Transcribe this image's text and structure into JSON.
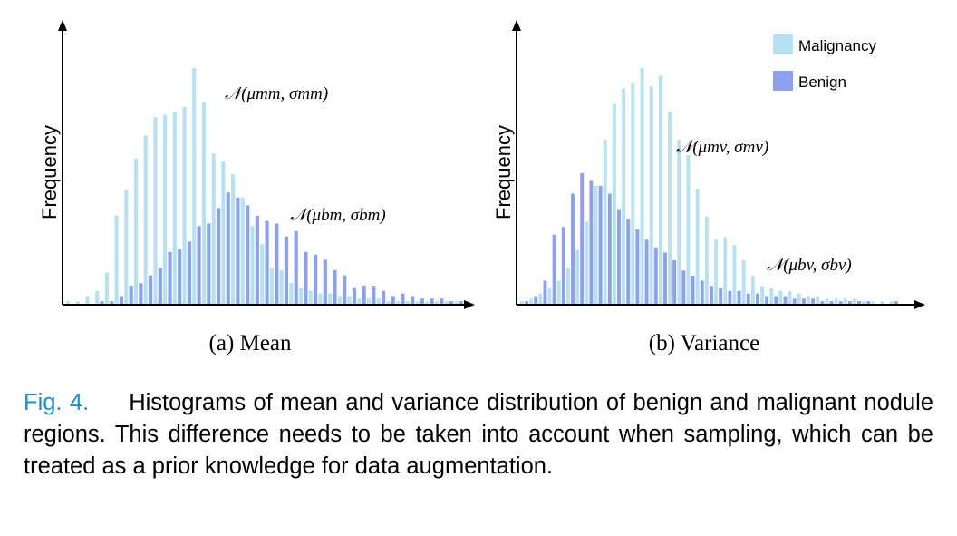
{
  "colors": {
    "malignancy": "#b4e2f3",
    "benign": "#8c9ff0",
    "caption_label": "#1b8ed3"
  },
  "chart_data": [
    {
      "type": "bar",
      "id": "mean",
      "subcaption": "(a) Mean",
      "ylabel": "Frequency",
      "xlabel": "",
      "grid": false,
      "legend_position": "none",
      "series": [
        {
          "name": "Malignancy",
          "values": [
            1,
            1,
            3,
            5,
            12,
            34,
            44,
            56,
            65,
            72,
            73,
            74,
            76,
            91,
            78,
            58,
            55,
            50,
            41,
            30,
            23,
            14,
            13,
            8,
            6,
            5,
            4,
            4,
            3,
            3,
            2,
            2,
            2,
            1,
            1,
            1,
            1,
            1,
            1,
            1,
            1
          ]
        },
        {
          "name": "Benign",
          "values": [
            0,
            0,
            0,
            1,
            1,
            3,
            7,
            8,
            11,
            14,
            20,
            21,
            24,
            30,
            31,
            37,
            43,
            41,
            38,
            34,
            32,
            31,
            26,
            28,
            20,
            19,
            17,
            13,
            11,
            6,
            7,
            7,
            5,
            3,
            4,
            3,
            2,
            2,
            2,
            1,
            1
          ]
        }
      ],
      "annotations": [
        {
          "text": "𝒩(μmm, σmm)",
          "series": "Malignancy"
        },
        {
          "text": "𝒩(μbm, σbm)",
          "series": "Benign"
        }
      ]
    },
    {
      "type": "bar",
      "id": "variance",
      "subcaption": "(b) Variance",
      "ylabel": "Frequency",
      "xlabel": "",
      "grid": false,
      "legend_position": "top-right",
      "legend": [
        "Malignancy",
        "Benign"
      ],
      "series": [
        {
          "name": "Malignancy",
          "values": [
            1,
            2,
            4,
            6,
            9,
            14,
            21,
            32,
            46,
            64,
            78,
            84,
            86,
            92,
            85,
            89,
            75,
            64,
            58,
            45,
            34,
            25,
            26,
            23,
            17,
            11,
            7,
            6,
            5,
            5,
            4,
            3,
            3,
            2,
            2,
            2,
            2,
            1,
            1,
            1,
            1
          ]
        },
        {
          "name": "Benign",
          "values": [
            1,
            3,
            9,
            27,
            30,
            43,
            51,
            48,
            46,
            43,
            37,
            33,
            29,
            25,
            22,
            20,
            17,
            13,
            11,
            9,
            7,
            6,
            5,
            5,
            4,
            4,
            3,
            3,
            3,
            2,
            2,
            2,
            1,
            1,
            1,
            1,
            1,
            1,
            0,
            0,
            1
          ]
        }
      ],
      "annotations": [
        {
          "text": "𝒩(μmv, σmv)",
          "series": "Malignancy"
        },
        {
          "text": "𝒩(μbv, σbv)",
          "series": "Benign"
        }
      ]
    }
  ],
  "caption": {
    "label": "Fig. 4.",
    "text": "Histograms of mean and variance distribution of benign and malignant nodule regions. This difference needs to be taken into account when sampling, which can be treated as a prior knowledge for data augmentation."
  }
}
